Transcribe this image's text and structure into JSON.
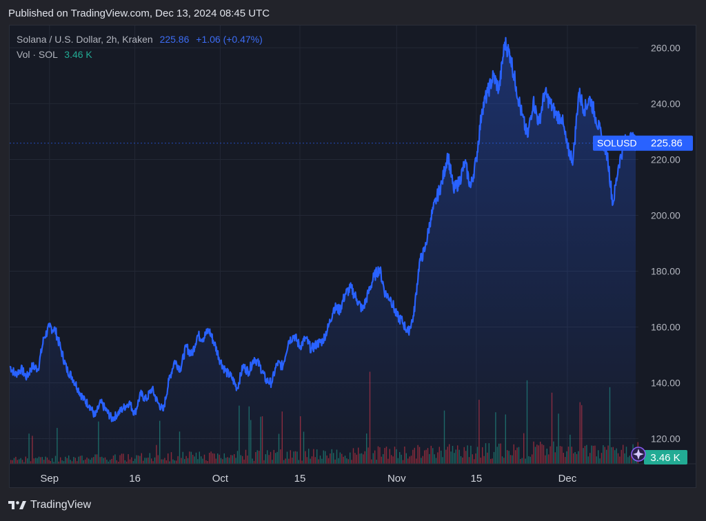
{
  "header": {
    "published": "Published on TradingView.com, Dec 13, 2024 08:45 UTC"
  },
  "legend": {
    "symbol": "Solana / U.S. Dollar, 2h, Kraken",
    "price": "225.86",
    "change": "+1.06 (+0.47%)",
    "vol_label": "Vol · SOL",
    "vol_value": "3.46 K"
  },
  "price_tag": {
    "symbol": "SOLUSD",
    "value": "225.86",
    "numeric": 225.86
  },
  "vol_tag": "3.46 K",
  "footer": {
    "brand": "TradingView",
    "logo": "tradingview-logo-icon"
  },
  "colors": {
    "line": "#2962ff",
    "up_volume": "#22ab94",
    "down_volume": "#f23645",
    "tag_bg": "#2962ff",
    "vol_tag_bg": "#22ab94",
    "background": "#161a25",
    "grid": "#232835"
  },
  "chart_data": {
    "type": "line",
    "title": "Solana / U.S. Dollar, 2h, Kraken",
    "xlabel": "",
    "ylabel": "",
    "ylim": [
      111,
      268
    ],
    "y_ticks": [
      120,
      140,
      160,
      180,
      200,
      220,
      240,
      260
    ],
    "y_tick_labels": [
      "120.00",
      "140.00",
      "160.00",
      "180.00",
      "200.00",
      "220.00",
      "240.00",
      "260.00"
    ],
    "x_tick_labels": [
      "Sep",
      "16",
      "Oct",
      "15",
      "Nov",
      "15",
      "Dec"
    ],
    "x_tick_dates": [
      "2024-09-01",
      "2024-09-16",
      "2024-10-01",
      "2024-10-15",
      "2024-11-01",
      "2024-11-15",
      "2024-12-01"
    ],
    "x_range": [
      "2024-08-25",
      "2024-12-13"
    ],
    "grid": true,
    "series": [
      {
        "dates": [
          "2024-08-25",
          "2024-08-26",
          "2024-08-27",
          "2024-08-28",
          "2024-08-29",
          "2024-08-30",
          "2024-08-31",
          "2024-09-01",
          "2024-09-02",
          "2024-09-03",
          "2024-09-04",
          "2024-09-05",
          "2024-09-06",
          "2024-09-07",
          "2024-09-08",
          "2024-09-09",
          "2024-09-10",
          "2024-09-11",
          "2024-09-12",
          "2024-09-13",
          "2024-09-14",
          "2024-09-15",
          "2024-09-16",
          "2024-09-17",
          "2024-09-18",
          "2024-09-19",
          "2024-09-20",
          "2024-09-21",
          "2024-09-22",
          "2024-09-23",
          "2024-09-24",
          "2024-09-25",
          "2024-09-26",
          "2024-09-27",
          "2024-09-28",
          "2024-09-29",
          "2024-09-30",
          "2024-10-01",
          "2024-10-02",
          "2024-10-03",
          "2024-10-04",
          "2024-10-05",
          "2024-10-06",
          "2024-10-07",
          "2024-10-08",
          "2024-10-09",
          "2024-10-10",
          "2024-10-11",
          "2024-10-12",
          "2024-10-13",
          "2024-10-14",
          "2024-10-15",
          "2024-10-16",
          "2024-10-17",
          "2024-10-18",
          "2024-10-19",
          "2024-10-20",
          "2024-10-21",
          "2024-10-22",
          "2024-10-23",
          "2024-10-24",
          "2024-10-25",
          "2024-10-26",
          "2024-10-27",
          "2024-10-28",
          "2024-10-29",
          "2024-10-30",
          "2024-10-31",
          "2024-11-01",
          "2024-11-02",
          "2024-11-03",
          "2024-11-04",
          "2024-11-05",
          "2024-11-06",
          "2024-11-07",
          "2024-11-08",
          "2024-11-09",
          "2024-11-10",
          "2024-11-11",
          "2024-11-12",
          "2024-11-13",
          "2024-11-14",
          "2024-11-15",
          "2024-11-16",
          "2024-11-17",
          "2024-11-18",
          "2024-11-19",
          "2024-11-20",
          "2024-11-21",
          "2024-11-22",
          "2024-11-23",
          "2024-11-24",
          "2024-11-25",
          "2024-11-26",
          "2024-11-27",
          "2024-11-28",
          "2024-11-29",
          "2024-11-30",
          "2024-12-01",
          "2024-12-02",
          "2024-12-03",
          "2024-12-04",
          "2024-12-05",
          "2024-12-06",
          "2024-12-07",
          "2024-12-08",
          "2024-12-09",
          "2024-12-10",
          "2024-12-11",
          "2024-12-12",
          "2024-12-13"
        ],
        "values": [
          146,
          143,
          145,
          142,
          146,
          145,
          156,
          160,
          159,
          152,
          145,
          142,
          138,
          134,
          132,
          128,
          133,
          130,
          127,
          129,
          131,
          133,
          129,
          136,
          134,
          138,
          133,
          130,
          141,
          148,
          145,
          153,
          150,
          157,
          156,
          159,
          154,
          148,
          144,
          142,
          138,
          146,
          144,
          149,
          146,
          141,
          140,
          147,
          146,
          155,
          157,
          153,
          156,
          152,
          154,
          155,
          160,
          167,
          166,
          172,
          174,
          170,
          166,
          172,
          178,
          181,
          172,
          170,
          164,
          162,
          158,
          164,
          183,
          188,
          199,
          206,
          212,
          222,
          209,
          212,
          219,
          210,
          220,
          238,
          244,
          250,
          245,
          262,
          257,
          246,
          236,
          228,
          241,
          233,
          244,
          240,
          236,
          235,
          224,
          220,
          244,
          238,
          242,
          235,
          228,
          222,
          204,
          218,
          226,
          228,
          225.86
        ]
      }
    ],
    "volume_note": "volume histogram shown below price line, colored up/down"
  }
}
